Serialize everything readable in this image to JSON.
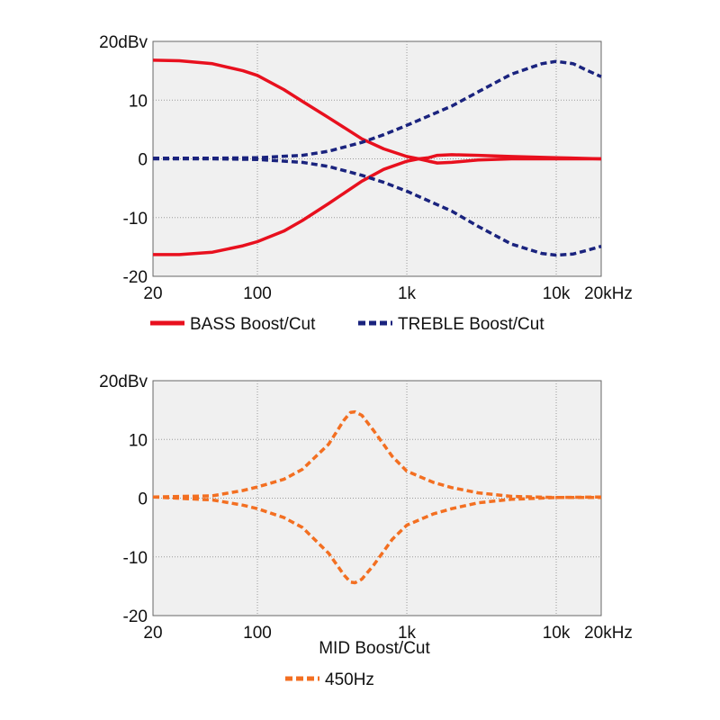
{
  "chart_data": [
    {
      "type": "line",
      "x_scale": "log",
      "xlim": [
        20,
        20000
      ],
      "ylim": [
        -20,
        20
      ],
      "grid": true,
      "x_ticks": [
        20,
        100,
        1000,
        10000,
        20000
      ],
      "x_tick_labels": [
        "20",
        "100",
        "1k",
        "10k",
        "20kHz"
      ],
      "y_ticks": [
        20,
        10,
        0,
        -10,
        -20
      ],
      "y_tick_labels": [
        "20dBv",
        "10",
        "0",
        "-10",
        "-20"
      ],
      "legend": "bottom",
      "series": [
        {
          "name": "BASS Boost/Cut",
          "color": "#e8101e",
          "style": "solid",
          "curves": [
            [
              [
                20,
                16.8
              ],
              [
                30,
                16.7
              ],
              [
                50,
                16.2
              ],
              [
                80,
                15.0
              ],
              [
                100,
                14.2
              ],
              [
                150,
                11.8
              ],
              [
                200,
                9.8
              ],
              [
                300,
                7.0
              ],
              [
                500,
                3.4
              ],
              [
                700,
                1.7
              ],
              [
                1000,
                0.4
              ],
              [
                1200,
                0.0
              ],
              [
                1400,
                0.2
              ],
              [
                1600,
                0.6
              ],
              [
                2000,
                0.7
              ],
              [
                3000,
                0.6
              ],
              [
                5000,
                0.4
              ],
              [
                10000,
                0.2
              ],
              [
                20000,
                0.0
              ]
            ],
            [
              [
                20,
                -16.3
              ],
              [
                30,
                -16.3
              ],
              [
                50,
                -15.9
              ],
              [
                80,
                -14.8
              ],
              [
                100,
                -14.1
              ],
              [
                150,
                -12.3
              ],
              [
                200,
                -10.5
              ],
              [
                300,
                -7.6
              ],
              [
                500,
                -3.8
              ],
              [
                700,
                -1.8
              ],
              [
                1000,
                -0.4
              ],
              [
                1200,
                0.0
              ],
              [
                1400,
                -0.4
              ],
              [
                1600,
                -0.7
              ],
              [
                2000,
                -0.6
              ],
              [
                3000,
                -0.2
              ],
              [
                5000,
                0.0
              ],
              [
                10000,
                0.0
              ],
              [
                20000,
                0.0
              ]
            ]
          ]
        },
        {
          "name": "TREBLE Boost/Cut",
          "color": "#1a237e",
          "style": "dashed",
          "curves": [
            [
              [
                20,
                0.1
              ],
              [
                50,
                0.1
              ],
              [
                100,
                0.2
              ],
              [
                200,
                0.6
              ],
              [
                300,
                1.3
              ],
              [
                500,
                2.8
              ],
              [
                700,
                4.1
              ],
              [
                1000,
                5.7
              ],
              [
                2000,
                9.0
              ],
              [
                3000,
                11.4
              ],
              [
                5000,
                14.4
              ],
              [
                8000,
                16.2
              ],
              [
                10000,
                16.6
              ],
              [
                13000,
                16.2
              ],
              [
                16000,
                15.1
              ],
              [
                20000,
                14.0
              ]
            ],
            [
              [
                20,
                0.0
              ],
              [
                50,
                0.0
              ],
              [
                100,
                -0.1
              ],
              [
                200,
                -0.6
              ],
              [
                300,
                -1.3
              ],
              [
                500,
                -2.8
              ],
              [
                700,
                -4.0
              ],
              [
                1000,
                -5.5
              ],
              [
                2000,
                -8.9
              ],
              [
                3000,
                -11.5
              ],
              [
                5000,
                -14.5
              ],
              [
                8000,
                -16.1
              ],
              [
                10000,
                -16.4
              ],
              [
                13000,
                -16.2
              ],
              [
                16000,
                -15.6
              ],
              [
                20000,
                -14.9
              ]
            ]
          ]
        }
      ]
    },
    {
      "type": "line",
      "x_scale": "log",
      "xlim": [
        20,
        20000
      ],
      "ylim": [
        -20,
        20
      ],
      "grid": true,
      "x_ticks": [
        20,
        100,
        1000,
        10000,
        20000
      ],
      "x_tick_labels": [
        "20",
        "100",
        "1k",
        "10k",
        "20kHz"
      ],
      "y_ticks": [
        20,
        10,
        0,
        -10,
        -20
      ],
      "y_tick_labels": [
        "20dBv",
        "10",
        "0",
        "-10",
        "-20"
      ],
      "title_below": "MID Boost/Cut",
      "legend": "bottom",
      "series": [
        {
          "name": "450Hz",
          "color": "#f36f21",
          "style": "dashed",
          "curves": [
            [
              [
                20,
                0.2
              ],
              [
                50,
                0.4
              ],
              [
                80,
                1.3
              ],
              [
                100,
                1.9
              ],
              [
                150,
                3.2
              ],
              [
                200,
                4.9
              ],
              [
                300,
                9.2
              ],
              [
                380,
                13.3
              ],
              [
                420,
                14.6
              ],
              [
                450,
                14.7
              ],
              [
                500,
                14.1
              ],
              [
                600,
                11.5
              ],
              [
                800,
                7.1
              ],
              [
                1000,
                4.6
              ],
              [
                1500,
                2.7
              ],
              [
                2000,
                1.8
              ],
              [
                3000,
                0.9
              ],
              [
                5000,
                0.3
              ],
              [
                10000,
                0.1
              ],
              [
                20000,
                0.2
              ]
            ],
            [
              [
                20,
                0.2
              ],
              [
                50,
                -0.3
              ],
              [
                80,
                -1.2
              ],
              [
                100,
                -1.8
              ],
              [
                150,
                -3.3
              ],
              [
                200,
                -5.0
              ],
              [
                300,
                -9.4
              ],
              [
                380,
                -13.1
              ],
              [
                420,
                -14.3
              ],
              [
                450,
                -14.4
              ],
              [
                500,
                -13.8
              ],
              [
                600,
                -11.4
              ],
              [
                800,
                -7.0
              ],
              [
                1000,
                -4.6
              ],
              [
                1500,
                -2.7
              ],
              [
                2000,
                -1.8
              ],
              [
                3000,
                -0.8
              ],
              [
                5000,
                -0.2
              ],
              [
                10000,
                0.1
              ],
              [
                20000,
                0.1
              ]
            ]
          ]
        }
      ]
    }
  ]
}
